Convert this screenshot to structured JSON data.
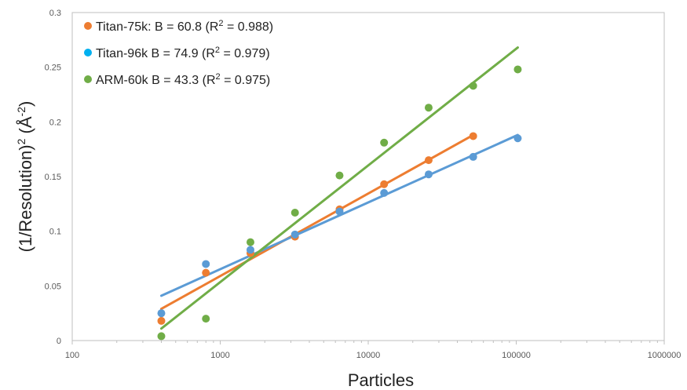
{
  "chart_data": {
    "type": "scatter",
    "xlabel": "Particles",
    "ylabel_parts": {
      "base": "(1/Resolution)",
      "exp": "2",
      "unit_open": " (Å",
      "unit_exp": "-2",
      "unit_close": ")"
    },
    "x_scale": "log",
    "xlim": [
      100,
      1000000
    ],
    "ylim": [
      0,
      0.3
    ],
    "x_ticks": [
      100,
      1000,
      10000,
      100000,
      1000000
    ],
    "x_tick_labels": [
      "100",
      "1000",
      "10000",
      "100000",
      "1000000"
    ],
    "y_ticks": [
      0,
      0.05,
      0.1,
      0.15,
      0.2,
      0.25,
      0.3
    ],
    "y_tick_labels": [
      "0",
      "0.05",
      "0.1",
      "0.15",
      "0.2",
      "0.25",
      "0.3"
    ],
    "grid": false,
    "legend_position": "top-left",
    "series": [
      {
        "legend_parts": {
          "pre": "Titan-75k: B = 60.8 (R",
          "exp": "2",
          "post": " = 0.988)"
        },
        "color": "#ED7D31",
        "marker_color": "#ED7D31",
        "x": [
          400,
          800,
          1600,
          3200,
          6400,
          12800,
          25600,
          51200
        ],
        "y": [
          0.018,
          0.062,
          0.08,
          0.095,
          0.12,
          0.143,
          0.165,
          0.187
        ],
        "fit": {
          "x": [
            400,
            51200
          ],
          "y": [
            0.029,
            0.188
          ]
        }
      },
      {
        "legend_parts": {
          "pre": "Titan-96k B = 74.9 (R",
          "exp": "2",
          "post": " = 0.979)"
        },
        "color": "#5B9BD5",
        "marker_color": "#00B0F0",
        "x": [
          400,
          800,
          1600,
          3200,
          6400,
          12800,
          25600,
          51200,
          102400
        ],
        "y": [
          0.025,
          0.07,
          0.083,
          0.097,
          0.118,
          0.135,
          0.152,
          0.168,
          0.185
        ],
        "fit": {
          "x": [
            400,
            102400
          ],
          "y": [
            0.041,
            0.188
          ]
        }
      },
      {
        "legend_parts": {
          "pre": "ARM-60k B = 43.3 (R",
          "exp": "2",
          "post": " = 0.975)"
        },
        "color": "#70AD47",
        "marker_color": "#70AD47",
        "x": [
          400,
          800,
          1600,
          3200,
          6400,
          12800,
          25600,
          51200,
          102400
        ],
        "y": [
          0.004,
          0.02,
          0.09,
          0.117,
          0.151,
          0.181,
          0.213,
          0.233,
          0.248
        ],
        "fit": {
          "x": [
            400,
            102400
          ],
          "y": [
            0.011,
            0.268
          ]
        }
      }
    ]
  }
}
